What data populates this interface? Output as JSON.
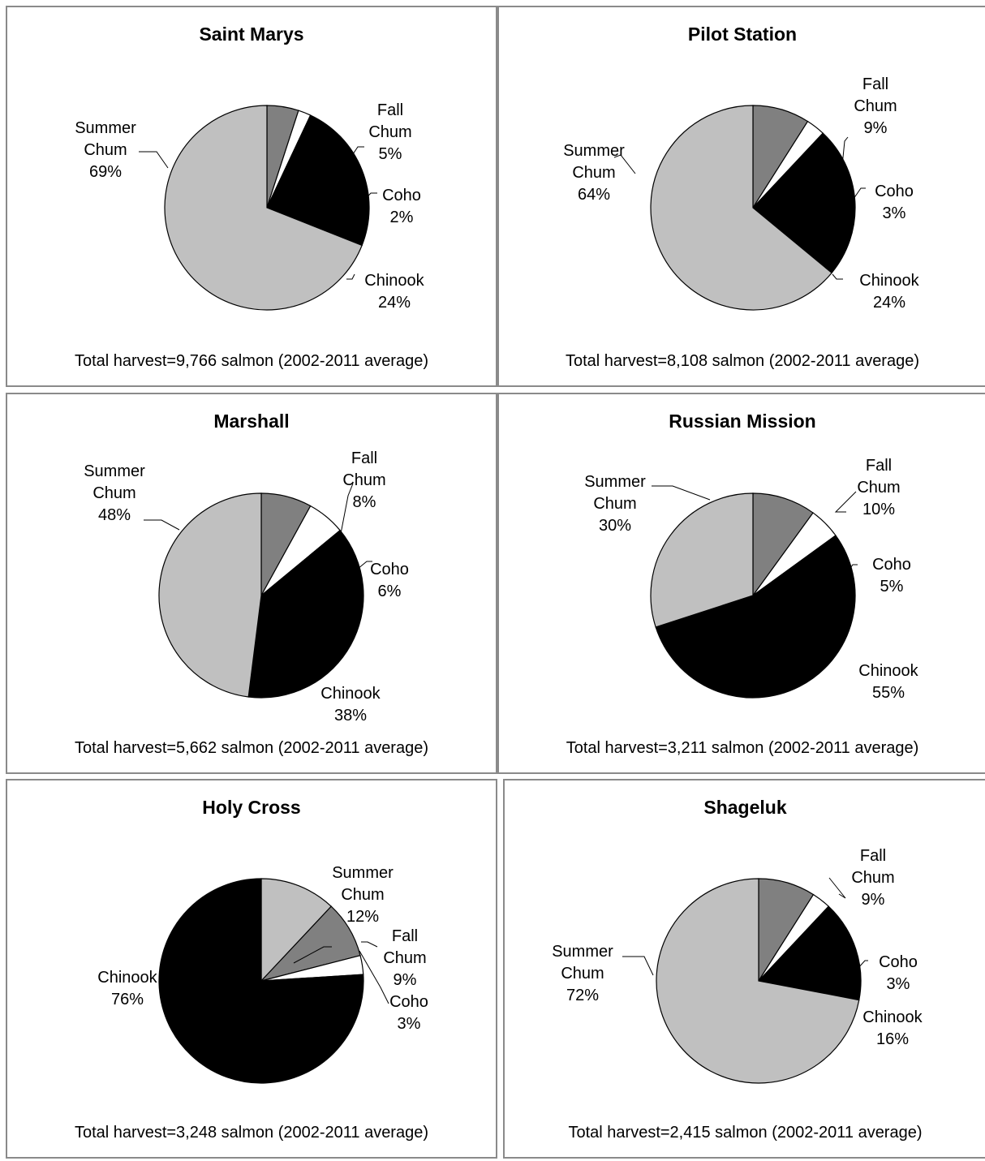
{
  "chart_data": [
    {
      "type": "pie",
      "title": "Saint Marys",
      "footer": "Total harvest=9,766 salmon (2002-2011 average)",
      "slices": [
        {
          "name": "Fall Chum",
          "value": 5,
          "label": "5%",
          "color": "#808080"
        },
        {
          "name": "Coho",
          "value": 2,
          "label": "2%",
          "color": "#ffffff"
        },
        {
          "name": "Chinook",
          "value": 24,
          "label": "24%",
          "color": "#000000"
        },
        {
          "name": "Summer Chum",
          "value": 69,
          "label": "69%",
          "color": "#c0c0c0"
        }
      ]
    },
    {
      "type": "pie",
      "title": "Pilot Station",
      "footer": "Total harvest=8,108 salmon (2002-2011 average)",
      "slices": [
        {
          "name": "Fall Chum",
          "value": 9,
          "label": "9%",
          "color": "#808080"
        },
        {
          "name": "Coho",
          "value": 3,
          "label": "3%",
          "color": "#ffffff"
        },
        {
          "name": "Chinook",
          "value": 24,
          "label": "24%",
          "color": "#000000"
        },
        {
          "name": "Summer Chum",
          "value": 64,
          "label": "64%",
          "color": "#c0c0c0"
        }
      ]
    },
    {
      "type": "pie",
      "title": "Marshall",
      "footer": "Total harvest=5,662 salmon (2002-2011 average)",
      "slices": [
        {
          "name": "Fall Chum",
          "value": 8,
          "label": "8%",
          "color": "#808080"
        },
        {
          "name": "Coho",
          "value": 6,
          "label": "6%",
          "color": "#ffffff"
        },
        {
          "name": "Chinook",
          "value": 38,
          "label": "38%",
          "color": "#000000"
        },
        {
          "name": "Summer Chum",
          "value": 48,
          "label": "48%",
          "color": "#c0c0c0"
        }
      ]
    },
    {
      "type": "pie",
      "title": "Russian Mission",
      "footer": "Total harvest=3,211 salmon (2002-2011 average)",
      "slices": [
        {
          "name": "Fall Chum",
          "value": 10,
          "label": "10%",
          "color": "#808080"
        },
        {
          "name": "Coho",
          "value": 5,
          "label": "5%",
          "color": "#ffffff"
        },
        {
          "name": "Chinook",
          "value": 55,
          "label": "55%",
          "color": "#000000"
        },
        {
          "name": "Summer Chum",
          "value": 30,
          "label": "30%",
          "color": "#c0c0c0"
        }
      ]
    },
    {
      "type": "pie",
      "title": "Holy Cross",
      "footer": "Total harvest=3,248 salmon (2002-2011 average)",
      "slices": [
        {
          "name": "Summer Chum",
          "value": 12,
          "label": "12%",
          "color": "#c0c0c0"
        },
        {
          "name": "Fall Chum",
          "value": 9,
          "label": "9%",
          "color": "#808080"
        },
        {
          "name": "Coho",
          "value": 3,
          "label": "3%",
          "color": "#ffffff"
        },
        {
          "name": "Chinook",
          "value": 76,
          "label": "76%",
          "color": "#000000"
        }
      ]
    },
    {
      "type": "pie",
      "title": "Shageluk",
      "footer": "Total harvest=2,415 salmon (2002-2011 average)",
      "slices": [
        {
          "name": "Fall Chum",
          "value": 9,
          "label": "9%",
          "color": "#808080"
        },
        {
          "name": "Coho",
          "value": 3,
          "label": "3%",
          "color": "#ffffff"
        },
        {
          "name": "Chinook",
          "value": 16,
          "label": "16%",
          "color": "#000000"
        },
        {
          "name": "Summer Chum",
          "value": 72,
          "label": "72%",
          "color": "#c0c0c0"
        }
      ]
    }
  ]
}
